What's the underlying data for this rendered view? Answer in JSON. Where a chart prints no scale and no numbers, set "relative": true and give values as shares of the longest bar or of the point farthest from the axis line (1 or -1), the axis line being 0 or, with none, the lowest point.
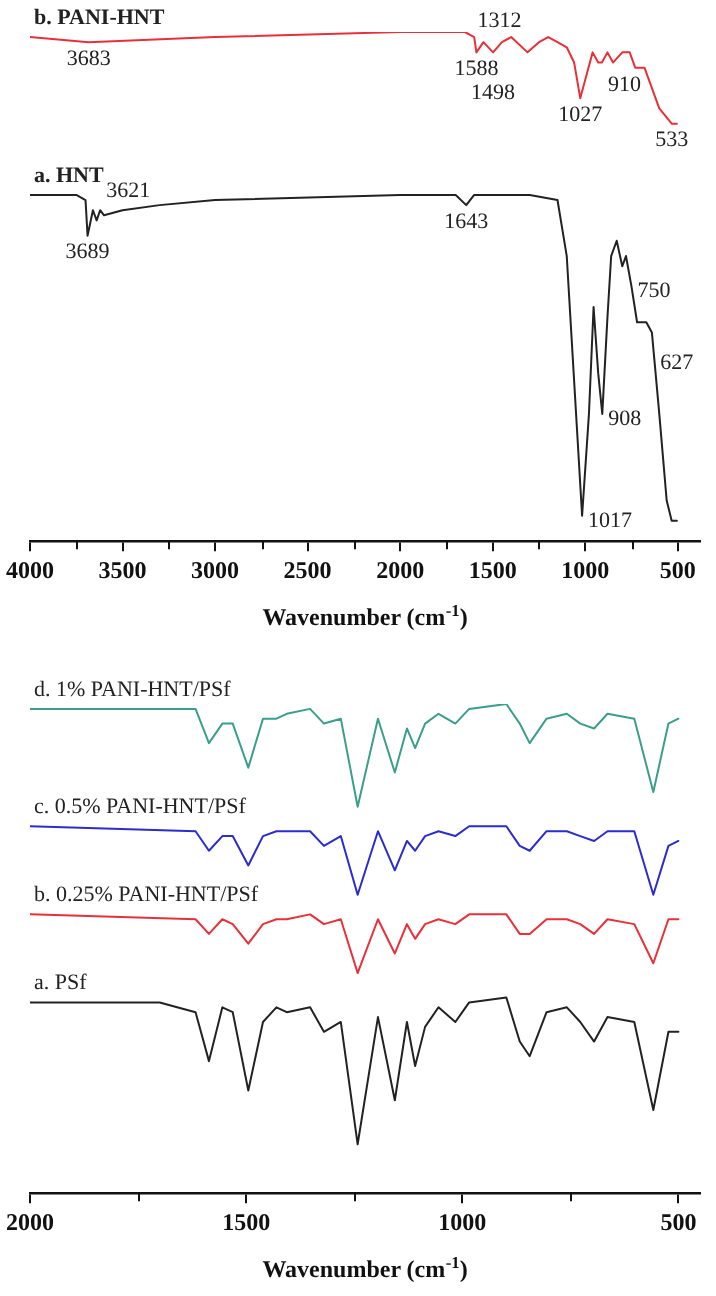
{
  "chart_data": [
    {
      "type": "line",
      "relative": true,
      "xlabel": "Wavenumber (cm$^{-1}$)",
      "xlim": [
        4000,
        380
      ],
      "xticks": [
        4000,
        {
          "value": 3750,
          "label": null
        },
        3500,
        {
          "value": 3250,
          "label": null
        },
        3000,
        {
          "value": 2750,
          "label": null
        },
        2500,
        {
          "value": 2250,
          "label": null
        },
        2000,
        {
          "value": 1750,
          "label": null
        },
        1500,
        {
          "value": 1250,
          "label": null
        },
        1000,
        {
          "value": 750,
          "label": null
        },
        500
      ],
      "grid": false,
      "legend": false,
      "marker": "none",
      "line_style": "solid",
      "tick_labels": "x",
      "series": [
        {
          "name": "b. PANI-HNT",
          "color": "#e8303a",
          "x": [
            4000,
            3683,
            3000,
            2000,
            1700,
            1650,
            1600,
            1588,
            1550,
            1498,
            1450,
            1400,
            1312,
            1250,
            1200,
            1150,
            1100,
            1060,
            1027,
            990,
            960,
            930,
            910,
            880,
            850,
            800,
            760,
            730,
            680,
            600,
            533,
            505
          ],
          "values": [
            0.99,
            0.98,
            0.99,
            1.0,
            1.0,
            1.0,
            0.99,
            0.96,
            0.98,
            0.96,
            0.98,
            0.99,
            0.96,
            0.98,
            0.99,
            0.98,
            0.97,
            0.94,
            0.87,
            0.92,
            0.96,
            0.94,
            0.94,
            0.96,
            0.94,
            0.96,
            0.96,
            0.93,
            0.93,
            0.85,
            0.82,
            0.82
          ]
        },
        {
          "name": "a. HNT",
          "color": "#222222",
          "x": [
            4000,
            3750,
            3700,
            3689,
            3660,
            3640,
            3621,
            3600,
            3500,
            3300,
            3000,
            2000,
            1700,
            1643,
            1600,
            1300,
            1150,
            1100,
            1017,
            980,
            955,
            930,
            908,
            880,
            860,
            830,
            800,
            780,
            750,
            720,
            670,
            640,
            600,
            560,
            533,
            505
          ],
          "values": [
            0.68,
            0.68,
            0.67,
            0.6,
            0.65,
            0.63,
            0.65,
            0.64,
            0.65,
            0.66,
            0.67,
            0.68,
            0.68,
            0.66,
            0.68,
            0.68,
            0.67,
            0.56,
            0.05,
            0.25,
            0.46,
            0.33,
            0.25,
            0.44,
            0.56,
            0.59,
            0.54,
            0.56,
            0.5,
            0.43,
            0.43,
            0.41,
            0.25,
            0.08,
            0.04,
            0.04
          ]
        }
      ],
      "annotations": [
        {
          "text": "3683",
          "x": 3683,
          "y": 0.98
        },
        {
          "text": "1588",
          "x": 1588,
          "y": 0.96
        },
        {
          "text": "1498",
          "x": 1498,
          "y": 0.96
        },
        {
          "text": "1312",
          "x": 1312,
          "y": 0.96
        },
        {
          "text": "1027",
          "x": 1027,
          "y": 0.87
        },
        {
          "text": "910",
          "x": 910,
          "y": 0.94
        },
        {
          "text": "533",
          "x": 533,
          "y": 0.82
        },
        {
          "text": "3689",
          "x": 3689,
          "y": 0.6
        },
        {
          "text": "3621",
          "x": 3621,
          "y": 0.65
        },
        {
          "text": "1643",
          "x": 1643,
          "y": 0.66
        },
        {
          "text": "750",
          "x": 750,
          "y": 0.5
        },
        {
          "text": "908",
          "x": 908,
          "y": 0.25
        },
        {
          "text": "1017",
          "x": 1017,
          "y": 0.05
        },
        {
          "text": "627",
          "x": 627,
          "y": 0.36
        }
      ]
    },
    {
      "type": "line",
      "relative": true,
      "xlabel": "Wavenumber (cm$^{-1}$)",
      "xlim": [
        2000,
        450
      ],
      "xticks": [
        2000,
        {
          "value": 1750,
          "label": null
        },
        1500,
        {
          "value": 1250,
          "label": null
        },
        1000,
        {
          "value": 750,
          "label": null
        },
        500
      ],
      "grid": false,
      "legend": false,
      "marker": "none",
      "line_style": "solid",
      "tick_labels": "x",
      "series": [
        {
          "name": "d. 1% PANI-HNT/PSf",
          "color": "#3a9e8c",
          "x": [
            2000,
            1617,
            1586,
            1555,
            1531,
            1495,
            1461,
            1430,
            1406,
            1352,
            1320,
            1281,
            1242,
            1195,
            1156,
            1128,
            1109,
            1086,
            1055,
            1016,
            984,
            898,
            867,
            844,
            805,
            758,
            727,
            695,
            664,
            602,
            558,
            523,
            500
          ],
          "values": [
            0.99,
            0.99,
            0.92,
            0.96,
            0.96,
            0.87,
            0.97,
            0.97,
            0.98,
            0.99,
            0.96,
            0.97,
            0.79,
            0.97,
            0.86,
            0.95,
            0.91,
            0.96,
            0.98,
            0.96,
            0.99,
            1.0,
            0.96,
            0.92,
            0.97,
            0.98,
            0.96,
            0.95,
            0.98,
            0.97,
            0.82,
            0.96,
            0.97
          ]
        },
        {
          "name": "c. 0.5% PANI-HNT/PSf",
          "color": "#2b2bd0",
          "x": [
            2000,
            1617,
            1586,
            1555,
            1531,
            1495,
            1461,
            1430,
            1406,
            1352,
            1320,
            1281,
            1242,
            1195,
            1156,
            1128,
            1109,
            1086,
            1055,
            1016,
            984,
            898,
            867,
            844,
            805,
            758,
            727,
            695,
            664,
            602,
            558,
            523,
            500
          ],
          "values": [
            0.75,
            0.74,
            0.7,
            0.73,
            0.73,
            0.67,
            0.73,
            0.74,
            0.74,
            0.74,
            0.71,
            0.73,
            0.61,
            0.74,
            0.66,
            0.72,
            0.7,
            0.73,
            0.74,
            0.73,
            0.75,
            0.75,
            0.71,
            0.7,
            0.74,
            0.74,
            0.73,
            0.72,
            0.74,
            0.74,
            0.61,
            0.71,
            0.72
          ]
        },
        {
          "name": "b. 0.25% PANI-HNT/PSf",
          "color": "#e8303a",
          "x": [
            2000,
            1617,
            1586,
            1555,
            1531,
            1495,
            1461,
            1430,
            1406,
            1352,
            1320,
            1281,
            1242,
            1195,
            1156,
            1128,
            1109,
            1086,
            1055,
            1016,
            984,
            898,
            867,
            844,
            805,
            758,
            727,
            695,
            664,
            602,
            558,
            523,
            500
          ],
          "values": [
            0.57,
            0.56,
            0.53,
            0.56,
            0.55,
            0.51,
            0.55,
            0.56,
            0.56,
            0.57,
            0.55,
            0.56,
            0.45,
            0.56,
            0.49,
            0.55,
            0.52,
            0.55,
            0.56,
            0.55,
            0.57,
            0.57,
            0.53,
            0.53,
            0.56,
            0.56,
            0.55,
            0.53,
            0.56,
            0.55,
            0.47,
            0.56,
            0.56
          ]
        },
        {
          "name": "a. PSf",
          "color": "#222222",
          "x": [
            2000,
            1700,
            1617,
            1586,
            1555,
            1531,
            1495,
            1461,
            1430,
            1406,
            1352,
            1320,
            1281,
            1242,
            1195,
            1156,
            1128,
            1109,
            1086,
            1055,
            1016,
            984,
            898,
            867,
            844,
            805,
            758,
            727,
            695,
            664,
            602,
            558,
            523,
            500
          ],
          "values": [
            0.39,
            0.39,
            0.37,
            0.27,
            0.38,
            0.37,
            0.21,
            0.35,
            0.38,
            0.37,
            0.38,
            0.33,
            0.35,
            0.1,
            0.36,
            0.19,
            0.35,
            0.26,
            0.34,
            0.38,
            0.35,
            0.39,
            0.4,
            0.31,
            0.28,
            0.37,
            0.38,
            0.35,
            0.31,
            0.36,
            0.35,
            0.17,
            0.33,
            0.33
          ]
        }
      ]
    }
  ]
}
